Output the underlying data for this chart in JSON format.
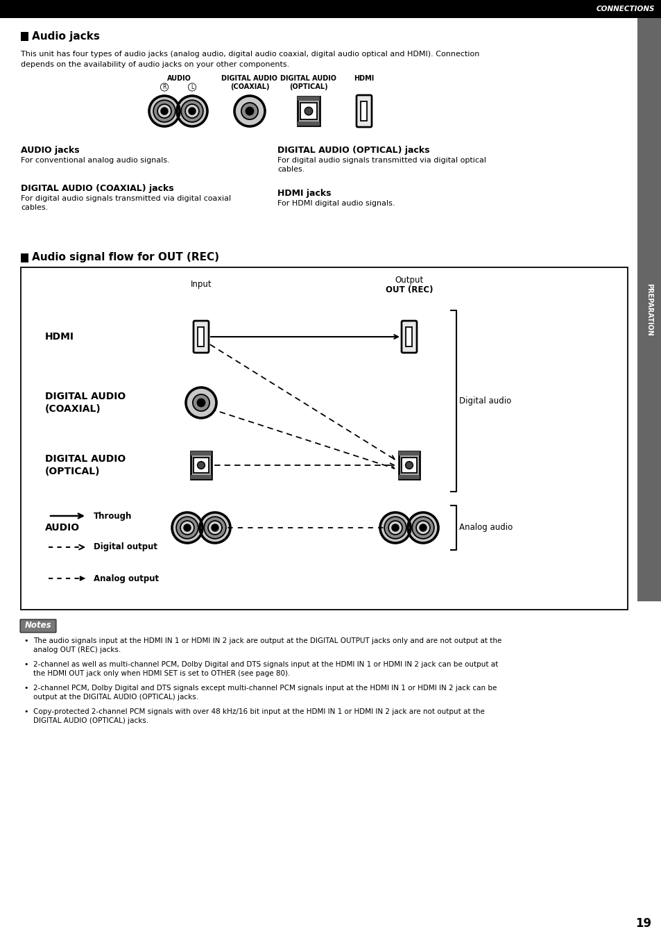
{
  "page_bg": "#ffffff",
  "header_bar_color": "#000000",
  "header_text": "CONNECTIONS",
  "header_text_color": "#ffffff",
  "section1_title": "Audio jacks",
  "section1_body1": "This unit has four types of audio jacks (analog audio, digital audio coaxial, digital audio optical and HDMI). Connection",
  "section1_body2": "depends on the availability of audio jacks on your other components.",
  "subsection_titles_left": [
    "AUDIO jacks",
    "DIGITAL AUDIO (COAXIAL) jacks"
  ],
  "subsection_bodies_left": [
    "For conventional analog audio signals.",
    "For digital audio signals transmitted via digital coaxial\ncables."
  ],
  "subsection_titles_right": [
    "DIGITAL AUDIO (OPTICAL) jacks",
    "HDMI jacks"
  ],
  "subsection_bodies_right": [
    "For digital audio signals transmitted via digital optical\ncables.",
    "For HDMI digital audio signals."
  ],
  "section2_title": "Audio signal flow for OUT (REC)",
  "flow_input_label": "Input",
  "flow_output_label1": "Output",
  "flow_output_label2": "OUT (REC)",
  "flow_digital_label": "Digital audio",
  "flow_analog_label": "Analog audio",
  "notes_title": "Notes",
  "notes_items": [
    "The audio signals input at the HDMI IN 1 or HDMI IN 2 jack are output at the DIGITAL OUTPUT jacks only and are not output at the analog OUT (REC) jacks.",
    "2-channel as well as multi-channel PCM, Dolby Digital and DTS signals input at the HDMI IN 1 or HDMI IN 2 jack can be output at the HDMI OUT jack only when HDMI SET is set to OTHER (see page 80).",
    "2-channel PCM, Dolby Digital and DTS signals except multi-channel PCM signals input at the HDMI IN 1 or HDMI IN 2 jack can be output at the DIGITAL AUDIO (OPTICAL) jacks.",
    "Copy-protected 2-channel PCM signals with over 48 kHz/16 bit input at the HDMI IN 1 or HDMI IN 2 jack are not output at the DIGITAL AUDIO (OPTICAL) jacks."
  ],
  "page_number": "19",
  "sidebar_text": "PREPARATION",
  "sidebar_bg": "#666666"
}
